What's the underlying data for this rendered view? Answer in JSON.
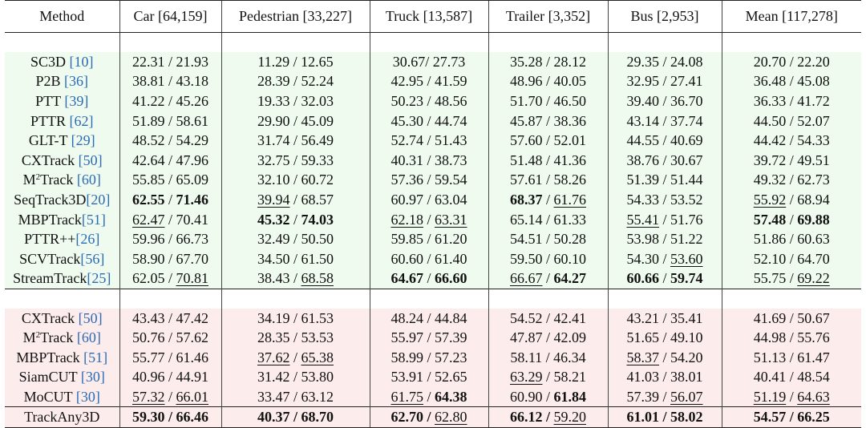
{
  "headers": {
    "method": "Method",
    "car": "Car [64,159]",
    "pedestrian": "Pedestrian [33,227]",
    "truck": "Truck [13,587]",
    "trailer": "Trailer [3,352]",
    "bus": "Bus [2,953]",
    "mean": "Mean [117,278]"
  },
  "groups": [
    {
      "rows": [
        {
          "name": "SC3D ",
          "sup": "",
          "cite": "[10]",
          "cells": [
            {
              "a": "22.31",
              "sep": " / ",
              "b": "21.93"
            },
            {
              "a": "11.29",
              "sep": " / ",
              "b": "12.65"
            },
            {
              "a": "30.67",
              "sep": "/ ",
              "b": "27.73"
            },
            {
              "a": "35.28",
              "sep": " / ",
              "b": "28.12"
            },
            {
              "a": "29.35",
              "sep": " / ",
              "b": "24.08"
            },
            {
              "a": "20.70",
              "sep": " / ",
              "b": "22.20"
            }
          ]
        },
        {
          "name": "P2B ",
          "sup": "",
          "cite": "[36]",
          "cells": [
            {
              "a": "38.81",
              "sep": " / ",
              "b": "43.18"
            },
            {
              "a": "28.39",
              "sep": " / ",
              "b": "52.24"
            },
            {
              "a": "42.95",
              "sep": " / ",
              "b": "41.59"
            },
            {
              "a": "48.96",
              "sep": " / ",
              "b": "40.05"
            },
            {
              "a": "32.95",
              "sep": " / ",
              "b": "27.41"
            },
            {
              "a": "36.48",
              "sep": " / ",
              "b": "45.08"
            }
          ]
        },
        {
          "name": "PTT ",
          "sup": "",
          "cite": "[39]",
          "cells": [
            {
              "a": "41.22",
              "sep": " / ",
              "b": "45.26"
            },
            {
              "a": "19.33",
              "sep": " / ",
              "b": "32.03"
            },
            {
              "a": "50.23",
              "sep": " / ",
              "b": "48.56"
            },
            {
              "a": "51.70",
              "sep": " / ",
              "b": "46.50"
            },
            {
              "a": "39.40",
              "sep": " / ",
              "b": "36.70"
            },
            {
              "a": "36.33",
              "sep": " / ",
              "b": "41.72"
            }
          ]
        },
        {
          "name": "PTTR ",
          "sup": "",
          "cite": "[62]",
          "cells": [
            {
              "a": "51.89",
              "sep": " / ",
              "b": "58.61"
            },
            {
              "a": "29.90",
              "sep": " / ",
              "b": "45.09"
            },
            {
              "a": "45.30",
              "sep": " / ",
              "b": "44.74"
            },
            {
              "a": "45.87",
              "sep": " / ",
              "b": "38.36"
            },
            {
              "a": "43.14",
              "sep": " / ",
              "b": "37.74"
            },
            {
              "a": "44.50",
              "sep": " / ",
              "b": "52.07"
            }
          ]
        },
        {
          "name": "GLT-T ",
          "sup": "",
          "cite": "[29]",
          "cells": [
            {
              "a": "48.52",
              "sep": " / ",
              "b": "54.29"
            },
            {
              "a": "31.74",
              "sep": " / ",
              "b": "56.49"
            },
            {
              "a": "52.74",
              "sep": " / ",
              "b": "51.43"
            },
            {
              "a": "57.60",
              "sep": " / ",
              "b": "52.01"
            },
            {
              "a": "44.55",
              "sep": " / ",
              "b": "40.69"
            },
            {
              "a": "44.42",
              "sep": " / ",
              "b": "54.33"
            }
          ]
        },
        {
          "name": "CXTrack ",
          "sup": "",
          "cite": "[50]",
          "cells": [
            {
              "a": "42.64",
              "sep": " / ",
              "b": "47.96"
            },
            {
              "a": "32.75",
              "sep": " / ",
              "b": "59.33"
            },
            {
              "a": "40.31",
              "sep": " / ",
              "b": "38.73"
            },
            {
              "a": "51.48",
              "sep": " / ",
              "b": "41.36"
            },
            {
              "a": "38.76",
              "sep": " / ",
              "b": "30.67"
            },
            {
              "a": "39.72",
              "sep": " / ",
              "b": "49.51"
            }
          ]
        },
        {
          "name": "M",
          "sup": "2",
          "name2": "Track ",
          "cite": "[60]",
          "cells": [
            {
              "a": "55.85",
              "sep": " / ",
              "b": "65.09"
            },
            {
              "a": "32.10",
              "sep": " / ",
              "b": "60.72"
            },
            {
              "a": "57.36",
              "sep": " / ",
              "b": "59.54"
            },
            {
              "a": "57.61",
              "sep": " / ",
              "b": "58.26"
            },
            {
              "a": "51.39",
              "sep": " / ",
              "b": "51.44"
            },
            {
              "a": "49.32",
              "sep": " / ",
              "b": "62.73"
            }
          ]
        },
        {
          "name": "SeqTrack3D",
          "sup": "",
          "cite": "[20]",
          "cells": [
            {
              "a": "62.55",
              "sep": " / ",
              "b": "71.46",
              "sa": "b",
              "sb": "b"
            },
            {
              "a": "39.94",
              "sep": " / ",
              "b": "68.57",
              "sa": "u"
            },
            {
              "a": "60.97",
              "sep": " / ",
              "b": "63.04"
            },
            {
              "a": "68.37",
              "sep": " / ",
              "b": "61.76",
              "sa": "b",
              "sb": "u"
            },
            {
              "a": "54.33",
              "sep": " / ",
              "b": "53.52"
            },
            {
              "a": "55.92",
              "sep": " / ",
              "b": "68.94",
              "sa": "u"
            }
          ]
        },
        {
          "name": "MBPTrack",
          "sup": "",
          "cite": "[51]",
          "cells": [
            {
              "a": "62.47",
              "sep": " / ",
              "b": "70.41",
              "sa": "u"
            },
            {
              "a": "45.32",
              "sep": " / ",
              "b": "74.03",
              "sa": "b",
              "sb": "b"
            },
            {
              "a": "62.18",
              "sep": " / ",
              "b": "63.31",
              "sa": "u",
              "sb": "u"
            },
            {
              "a": "65.14",
              "sep": " / ",
              "b": "61.33"
            },
            {
              "a": "55.41",
              "sep": " / ",
              "b": "51.76",
              "sa": "u"
            },
            {
              "a": "57.48",
              "sep": " / ",
              "b": "69.88",
              "sa": "b",
              "sb": "b"
            }
          ]
        },
        {
          "name": "PTTR++",
          "sup": "",
          "cite": "[26]",
          "cells": [
            {
              "a": "59.96",
              "sep": " / ",
              "b": "66.73"
            },
            {
              "a": "32.49",
              "sep": " / ",
              "b": "50.50"
            },
            {
              "a": "59.85",
              "sep": " / ",
              "b": "61.20"
            },
            {
              "a": "54.51",
              "sep": " / ",
              "b": "50.28"
            },
            {
              "a": "53.98",
              "sep": " / ",
              "b": "51.22"
            },
            {
              "a": "51.86",
              "sep": " / ",
              "b": "60.63"
            }
          ]
        },
        {
          "name": "SCVTrack",
          "sup": "",
          "cite": "[56]",
          "cells": [
            {
              "a": "58.90",
              "sep": " / ",
              "b": "67.70"
            },
            {
              "a": "34.50",
              "sep": " / ",
              "b": "61.50"
            },
            {
              "a": "60.60",
              "sep": " / ",
              "b": "61.40"
            },
            {
              "a": "59.50",
              "sep": " / ",
              "b": "60.10"
            },
            {
              "a": "54.30",
              "sep": " / ",
              "b": "53.60",
              "sb": "u"
            },
            {
              "a": "52.10",
              "sep": " / ",
              "b": "64.70"
            }
          ]
        },
        {
          "name": "StreamTrack",
          "sup": "",
          "cite": "[25]",
          "cells": [
            {
              "a": "62.05",
              "sep": " / ",
              "b": "70.81",
              "sb": "u"
            },
            {
              "a": "38.43",
              "sep": " / ",
              "b": "68.58",
              "sb": "u"
            },
            {
              "a": "64.67",
              "sep": " / ",
              "b": "66.60",
              "sa": "b",
              "sb": "b"
            },
            {
              "a": "66.67",
              "sep": " / ",
              "b": "64.27",
              "sa": "u",
              "sb": "b"
            },
            {
              "a": "60.66",
              "sep": " / ",
              "b": "59.74",
              "sa": "b",
              "sb": "b"
            },
            {
              "a": "55.75",
              "sep": " / ",
              "b": "69.22",
              "sb": "u"
            }
          ]
        }
      ]
    },
    {
      "rows": [
        {
          "name": "CXTrack ",
          "sup": "",
          "cite": "[50]",
          "cells": [
            {
              "a": "43.43",
              "sep": " / ",
              "b": "47.42"
            },
            {
              "a": "34.19",
              "sep": " / ",
              "b": "61.53"
            },
            {
              "a": "48.24",
              "sep": " / ",
              "b": "44.84"
            },
            {
              "a": "54.52",
              "sep": " / ",
              "b": "42.41"
            },
            {
              "a": "43.21",
              "sep": " / ",
              "b": "35.41"
            },
            {
              "a": "41.69",
              "sep": " / ",
              "b": "50.67"
            }
          ]
        },
        {
          "name": "M",
          "sup": "2",
          "name2": "Track ",
          "cite": "[60]",
          "cells": [
            {
              "a": "50.76",
              "sep": " / ",
              "b": "57.62"
            },
            {
              "a": "28.35",
              "sep": " / ",
              "b": "53.53"
            },
            {
              "a": "55.97",
              "sep": " / ",
              "b": "57.39"
            },
            {
              "a": "47.87",
              "sep": " / ",
              "b": "42.09"
            },
            {
              "a": "51.65",
              "sep": " / ",
              "b": "49.10"
            },
            {
              "a": "44.98",
              "sep": " / ",
              "b": "55.76"
            }
          ]
        },
        {
          "name": "MBPTrack ",
          "sup": "",
          "cite": "[51]",
          "cells": [
            {
              "a": "55.77",
              "sep": " / ",
              "b": "61.46"
            },
            {
              "a": "37.62",
              "sep": "  / ",
              "b": "65.38",
              "sa": "u",
              "sb": "u"
            },
            {
              "a": "58.99",
              "sep": " / ",
              "b": "57.23"
            },
            {
              "a": "58.11",
              "sep": " / ",
              "b": "46.34"
            },
            {
              "a": "58.37",
              "sep": " / ",
              "b": "54.20",
              "sa": "u"
            },
            {
              "a": "51.13",
              "sep": " / ",
              "b": "61.47"
            }
          ]
        },
        {
          "name": "SiamCUT ",
          "sup": "",
          "cite": "[30]",
          "cells": [
            {
              "a": "40.96",
              "sep": " / ",
              "b": "44.91"
            },
            {
              "a": "31.42",
              "sep": " / ",
              "b": "53.80"
            },
            {
              "a": "53.91",
              "sep": " / ",
              "b": "52.65"
            },
            {
              "a": "63.29",
              "sep": " / ",
              "b": "58.21",
              "sa": "u"
            },
            {
              "a": "41.03",
              "sep": " / ",
              "b": "38.01"
            },
            {
              "a": "40.41",
              "sep": " / ",
              "b": "48.54"
            }
          ]
        },
        {
          "name": "MoCUT ",
          "sup": "",
          "cite": "[30]",
          "cells": [
            {
              "a": "57.32",
              "sep": " / ",
              "b": "66.01",
              "sa": "u",
              "sb": "u"
            },
            {
              "a": "33.47",
              "sep": " / ",
              "b": "63.12"
            },
            {
              "a": "61.75",
              "sep": " / ",
              "b": "64.38",
              "sa": "u",
              "sb": "b"
            },
            {
              "a": "60.90",
              "sep": " / ",
              "b": "61.84",
              "sb": "b"
            },
            {
              "a": "57.39",
              "sep": " / ",
              "b": "56.07",
              "sb": "u"
            },
            {
              "a": "51.19",
              "sep": " / ",
              "b": "64.63",
              "sa": "u",
              "sb": "u"
            }
          ]
        },
        {
          "name": "TrackAny3D",
          "sup": "",
          "cite": "",
          "cells": [
            {
              "a": "59.30",
              "sep": " / ",
              "b": "66.46",
              "sa": "b",
              "sb": "b",
              "ss": "b"
            },
            {
              "a": "40.37",
              "sep": " / ",
              "b": "68.70",
              "sa": "b",
              "sb": "b",
              "ss": "b"
            },
            {
              "a": "62.70",
              "sep": " / ",
              "b": "62.80",
              "sa": "b",
              "sb": "u",
              "ss": "b"
            },
            {
              "a": "66.12",
              "sep": " / ",
              "b": "59.20",
              "sa": "b",
              "sb": "u",
              "ss": "b"
            },
            {
              "a": "61.01",
              "sep": " / ",
              "b": "58.02",
              "sa": "b",
              "sb": "b",
              "ss": "b"
            },
            {
              "a": "54.57",
              "sep": " / ",
              "b": "66.25",
              "sa": "b",
              "sb": "b",
              "ss": "b"
            }
          ]
        }
      ]
    }
  ]
}
